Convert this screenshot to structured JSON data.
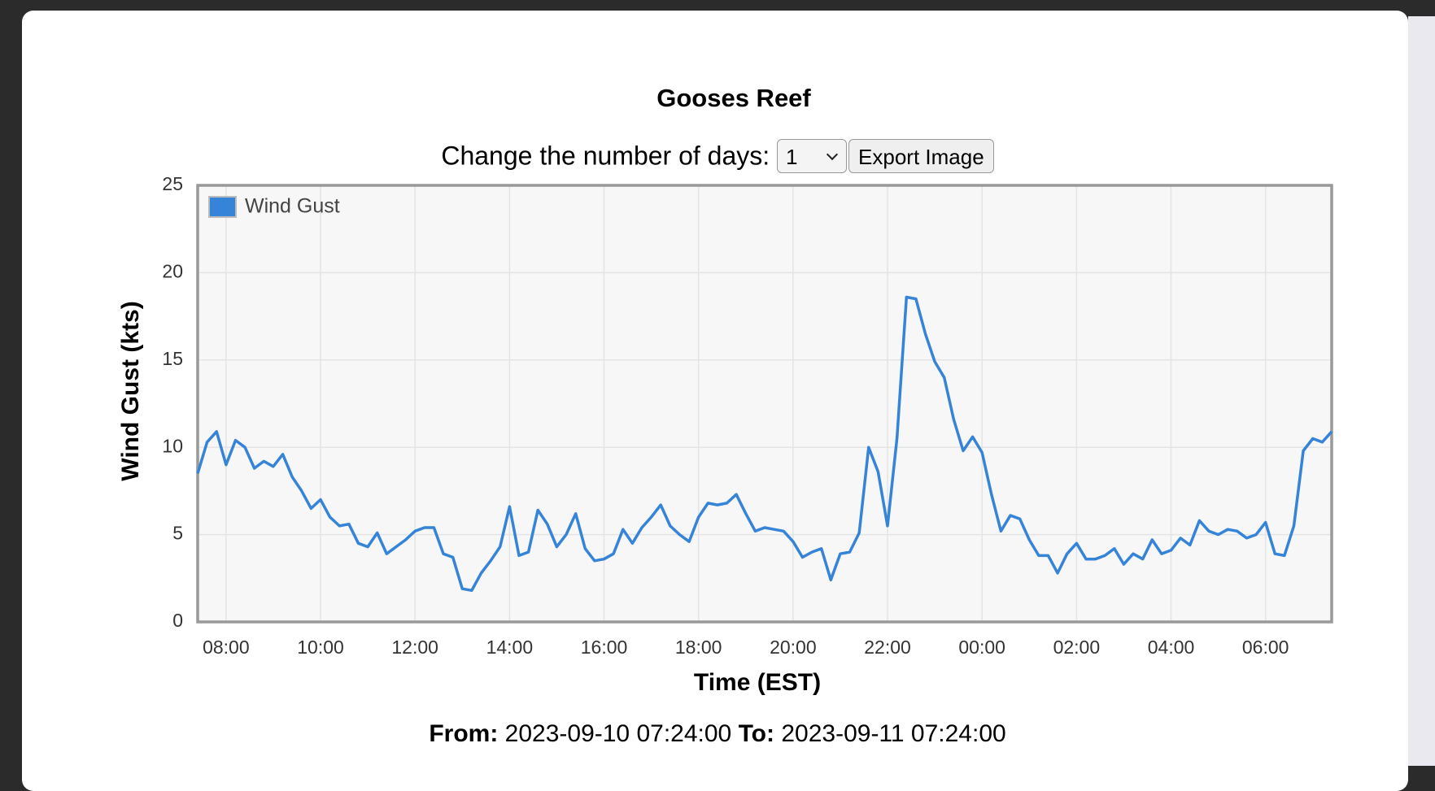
{
  "modal": {
    "controls": {
      "label": "Change the number of days:",
      "days": "1",
      "button": "Export Image"
    },
    "range": {
      "from_label": "From:",
      "from": "2023-09-10 07:24:00",
      "to_label": "To:",
      "to": "2023-09-11 07:24:00"
    }
  },
  "chart_data": {
    "type": "line",
    "title": "Gooses Reef",
    "x_label": "Time (EST)",
    "y_label": "Wind Gust (kts)",
    "x": [
      "2023-09-10 07:24",
      "2023-09-10 07:36",
      "2023-09-10 07:48",
      "2023-09-10 08:00",
      "2023-09-10 08:12",
      "2023-09-10 08:24",
      "2023-09-10 08:36",
      "2023-09-10 08:48",
      "2023-09-10 09:00",
      "2023-09-10 09:12",
      "2023-09-10 09:24",
      "2023-09-10 09:36",
      "2023-09-10 09:48",
      "2023-09-10 10:00",
      "2023-09-10 10:12",
      "2023-09-10 10:24",
      "2023-09-10 10:36",
      "2023-09-10 10:48",
      "2023-09-10 11:00",
      "2023-09-10 11:12",
      "2023-09-10 11:24",
      "2023-09-10 11:36",
      "2023-09-10 11:48",
      "2023-09-10 12:00",
      "2023-09-10 12:12",
      "2023-09-10 12:24",
      "2023-09-10 12:36",
      "2023-09-10 12:48",
      "2023-09-10 13:00",
      "2023-09-10 13:12",
      "2023-09-10 13:24",
      "2023-09-10 13:36",
      "2023-09-10 13:48",
      "2023-09-10 14:00",
      "2023-09-10 14:12",
      "2023-09-10 14:24",
      "2023-09-10 14:36",
      "2023-09-10 14:48",
      "2023-09-10 15:00",
      "2023-09-10 15:12",
      "2023-09-10 15:24",
      "2023-09-10 15:36",
      "2023-09-10 15:48",
      "2023-09-10 16:00",
      "2023-09-10 16:12",
      "2023-09-10 16:24",
      "2023-09-10 16:36",
      "2023-09-10 16:48",
      "2023-09-10 17:00",
      "2023-09-10 17:12",
      "2023-09-10 17:24",
      "2023-09-10 17:36",
      "2023-09-10 17:48",
      "2023-09-10 18:00",
      "2023-09-10 18:12",
      "2023-09-10 18:24",
      "2023-09-10 18:36",
      "2023-09-10 18:48",
      "2023-09-10 19:00",
      "2023-09-10 19:12",
      "2023-09-10 19:24",
      "2023-09-10 19:36",
      "2023-09-10 19:48",
      "2023-09-10 20:00",
      "2023-09-10 20:12",
      "2023-09-10 20:24",
      "2023-09-10 20:36",
      "2023-09-10 20:48",
      "2023-09-10 21:00",
      "2023-09-10 21:12",
      "2023-09-10 21:24",
      "2023-09-10 21:36",
      "2023-09-10 21:48",
      "2023-09-10 22:00",
      "2023-09-10 22:12",
      "2023-09-10 22:24",
      "2023-09-10 22:36",
      "2023-09-10 22:48",
      "2023-09-10 23:00",
      "2023-09-10 23:12",
      "2023-09-10 23:24",
      "2023-09-10 23:36",
      "2023-09-10 23:48",
      "2023-09-11 00:00",
      "2023-09-11 00:12",
      "2023-09-11 00:24",
      "2023-09-11 00:36",
      "2023-09-11 00:48",
      "2023-09-11 01:00",
      "2023-09-11 01:12",
      "2023-09-11 01:24",
      "2023-09-11 01:36",
      "2023-09-11 01:48",
      "2023-09-11 02:00",
      "2023-09-11 02:12",
      "2023-09-11 02:24",
      "2023-09-11 02:36",
      "2023-09-11 02:48",
      "2023-09-11 03:00",
      "2023-09-11 03:12",
      "2023-09-11 03:24",
      "2023-09-11 03:36",
      "2023-09-11 03:48",
      "2023-09-11 04:00",
      "2023-09-11 04:12",
      "2023-09-11 04:24",
      "2023-09-11 04:36",
      "2023-09-11 04:48",
      "2023-09-11 05:00",
      "2023-09-11 05:12",
      "2023-09-11 05:24",
      "2023-09-11 05:36",
      "2023-09-11 05:48",
      "2023-09-11 06:00",
      "2023-09-11 06:12",
      "2023-09-11 06:24",
      "2023-09-11 06:36",
      "2023-09-11 06:48",
      "2023-09-11 07:00",
      "2023-09-11 07:12",
      "2023-09-11 07:24"
    ],
    "series": [
      {
        "name": "Wind Gust",
        "color": "#3584d8",
        "values": [
          8.5,
          10.3,
          10.9,
          9,
          10.4,
          10,
          8.8,
          9.2,
          8.9,
          9.6,
          8.3,
          7.5,
          6.5,
          7,
          6,
          5.5,
          5.6,
          4.5,
          4.3,
          5.1,
          3.9,
          4.3,
          4.7,
          5.2,
          5.4,
          5.4,
          3.9,
          3.7,
          1.9,
          1.8,
          2.8,
          3.5,
          4.3,
          6.6,
          3.8,
          4,
          6.4,
          5.6,
          4.3,
          5,
          6.2,
          4.2,
          3.5,
          3.6,
          3.9,
          5.3,
          4.5,
          5.4,
          6,
          6.7,
          5.5,
          5,
          4.6,
          6,
          6.8,
          6.7,
          6.8,
          7.3,
          6.2,
          5.2,
          5.4,
          5.3,
          5.2,
          4.6,
          3.7,
          4,
          4.2,
          2.4,
          3.9,
          4,
          5.1,
          10,
          8.6,
          5.5,
          10.5,
          18.6,
          18.5,
          16.5,
          14.9,
          14,
          11.6,
          9.8,
          10.6,
          9.7,
          7.3,
          5.2,
          6.1,
          5.9,
          4.7,
          3.8,
          3.8,
          2.8,
          3.9,
          4.5,
          3.6,
          3.6,
          3.8,
          4.2,
          3.3,
          3.9,
          3.6,
          4.7,
          3.9,
          4.1,
          4.8,
          4.4,
          5.8,
          5.2,
          5,
          5.3,
          5.2,
          4.8,
          5,
          5.7,
          3.9,
          3.8,
          5.5,
          9.8,
          10.5,
          10.3,
          10.9
        ]
      }
    ],
    "xlim": [
      "2023-09-10 07:24",
      "2023-09-11 07:24"
    ],
    "xticks": [
      {
        "value": "2023-09-10 08:00",
        "label": "08:00"
      },
      {
        "value": "2023-09-10 10:00",
        "label": "10:00"
      },
      {
        "value": "2023-09-10 12:00",
        "label": "12:00"
      },
      {
        "value": "2023-09-10 14:00",
        "label": "14:00"
      },
      {
        "value": "2023-09-10 16:00",
        "label": "16:00"
      },
      {
        "value": "2023-09-10 18:00",
        "label": "18:00"
      },
      {
        "value": "2023-09-10 20:00",
        "label": "20:00"
      },
      {
        "value": "2023-09-10 22:00",
        "label": "22:00"
      },
      {
        "value": "2023-09-11 00:00",
        "label": "00:00"
      },
      {
        "value": "2023-09-11 02:00",
        "label": "02:00"
      },
      {
        "value": "2023-09-11 04:00",
        "label": "04:00"
      },
      {
        "value": "2023-09-11 06:00",
        "label": "06:00"
      }
    ],
    "ylim": [
      0,
      25
    ],
    "yticks": [
      0,
      5,
      10,
      15,
      20,
      25
    ],
    "grid": true,
    "legend": "top-left"
  }
}
